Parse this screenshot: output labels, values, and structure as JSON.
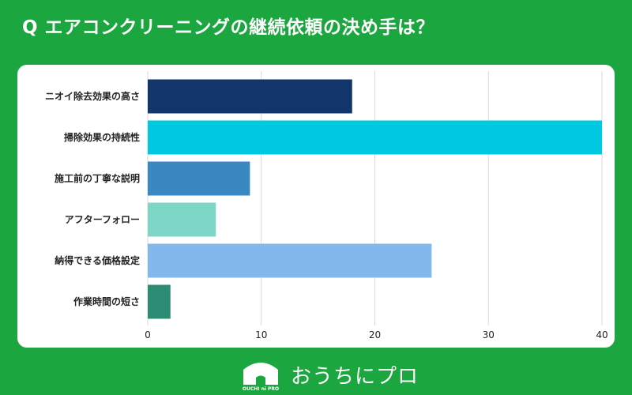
{
  "title": "Q エアコンクリーニングの継続依頼の決め手は？",
  "brand": {
    "name": "おうちにプロ",
    "logo_text": "OUCHI ni PRO"
  },
  "colors": {
    "background": "#1ca63f",
    "card": "#ffffff",
    "grid": "#d9d9d9"
  },
  "chart_data": {
    "type": "bar",
    "orientation": "horizontal",
    "title": "",
    "xlabel": "",
    "ylabel": "",
    "categories": [
      "ニオイ除去効果の高さ",
      "掃除効果の持続性",
      "施工前の丁寧な説明",
      "アフターフォロー",
      "納得できる価格設定",
      "作業時間の短さ"
    ],
    "values": [
      18,
      40,
      9,
      6,
      25,
      2
    ],
    "bar_colors": [
      "#12356b",
      "#00c8e0",
      "#3a88c1",
      "#7ed6c6",
      "#82b8ec",
      "#2d8c74"
    ],
    "xlim": [
      0,
      40
    ],
    "xticks": [
      0,
      10,
      20,
      30,
      40
    ],
    "grid": true,
    "legend": false
  }
}
